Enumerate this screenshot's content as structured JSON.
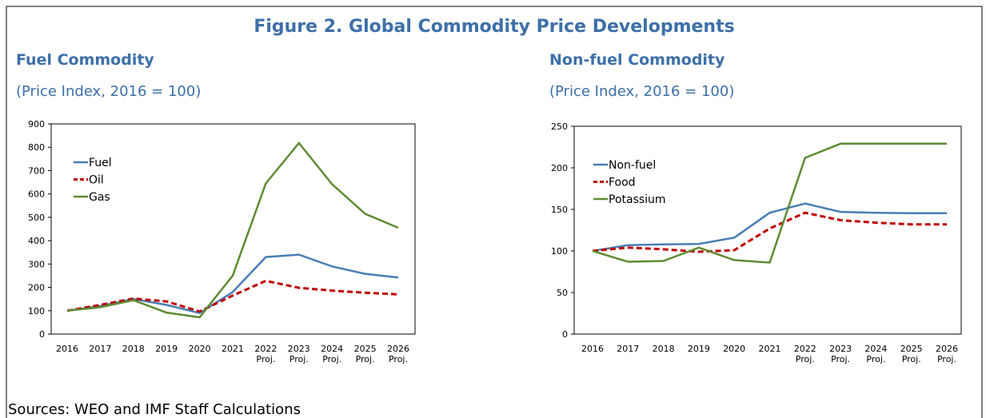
{
  "title": "Figure 2. Global Commodity Price Developments",
  "sources": "Sources: WEO and IMF Staff Calculations",
  "chart_data": [
    {
      "type": "line",
      "title": "Fuel Commodity",
      "subtitle": "(Price Index, 2016 = 100)",
      "categories": [
        "2016",
        "2017",
        "2018",
        "2019",
        "2020",
        "2021",
        "2022\nProj.",
        "2023\nProj.",
        "2024\nProj.",
        "2025\nProj.",
        "2026\nProj."
      ],
      "series": [
        {
          "name": "Fuel",
          "color": "#4a7eb5",
          "dashed": false,
          "values": [
            100,
            120,
            150,
            125,
            90,
            180,
            330,
            340,
            290,
            258,
            242
          ]
        },
        {
          "name": "Oil",
          "color": "#c00000",
          "dashed": true,
          "values": [
            100,
            125,
            152,
            140,
            97,
            165,
            228,
            198,
            186,
            177,
            170
          ]
        },
        {
          "name": "Gas",
          "color": "#5e8b33",
          "dashed": false,
          "values": [
            100,
            115,
            145,
            92,
            72,
            250,
            645,
            818,
            642,
            515,
            455
          ]
        }
      ],
      "ylim": [
        0,
        900
      ],
      "yticks": [
        0,
        100,
        200,
        300,
        400,
        500,
        600,
        700,
        800,
        900
      ],
      "legend": "upper left"
    },
    {
      "type": "line",
      "title": "Non-fuel Commodity",
      "subtitle": "(Price Index, 2016 = 100)",
      "categories": [
        "2016",
        "2017",
        "2018",
        "2019",
        "2020",
        "2021",
        "2022\nProj.",
        "2023\nProj.",
        "2024\nProj.",
        "2025\nProj.",
        "2026\nProj."
      ],
      "series": [
        {
          "name": "Non-fuel",
          "color": "#4a7eb5",
          "dashed": false,
          "values": [
            100,
            107,
            108,
            108.5,
            116,
            146,
            157,
            147,
            146,
            145.5,
            145.5
          ]
        },
        {
          "name": "Food",
          "color": "#c00000",
          "dashed": true,
          "values": [
            100,
            104,
            102,
            99,
            101,
            127,
            146,
            137,
            134,
            132,
            132
          ]
        },
        {
          "name": "Potassium",
          "color": "#5e8b33",
          "dashed": false,
          "values": [
            100,
            87,
            88,
            104,
            89,
            86,
            212,
            229,
            229,
            229,
            229
          ]
        }
      ],
      "ylim": [
        0,
        250
      ],
      "yticks": [
        0,
        50,
        100,
        150,
        200,
        250
      ],
      "legend": "upper left"
    }
  ]
}
